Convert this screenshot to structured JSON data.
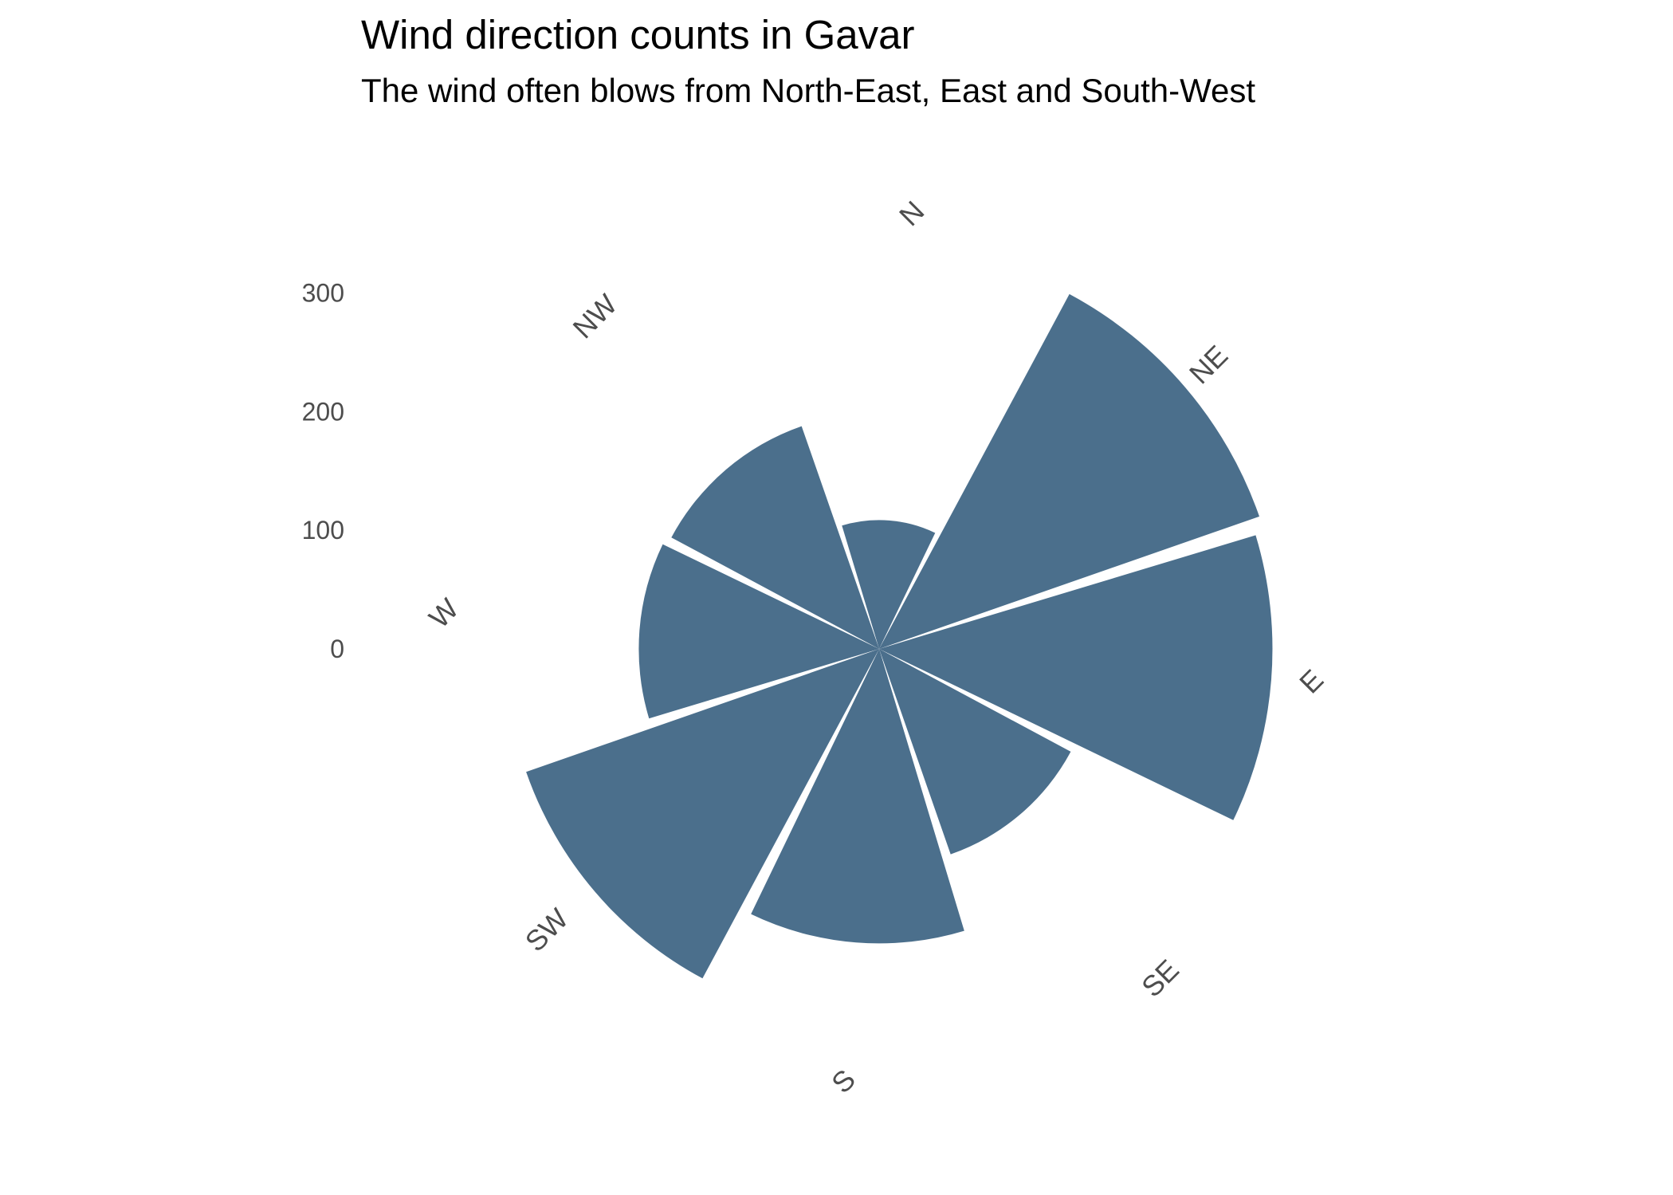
{
  "chart_data": {
    "type": "bar",
    "coord": "polar",
    "title": "Wind direction counts in Gavar",
    "subtitle": "The wind often blows from North-East, East and South-West",
    "categories": [
      "N",
      "NE",
      "E",
      "SE",
      "S",
      "SW",
      "W",
      "NW"
    ],
    "values": [
      112,
      350,
      342,
      189,
      256,
      325,
      209,
      205
    ],
    "yticks": [
      0,
      100,
      200,
      300
    ],
    "ylim": [
      0,
      350
    ],
    "grid": false,
    "legend": "none",
    "bar_color": "#4b6f8c"
  }
}
